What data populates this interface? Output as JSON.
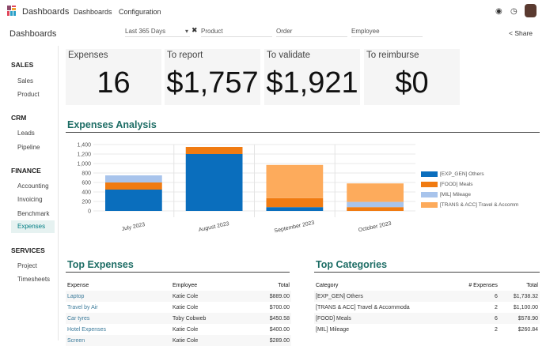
{
  "topbar": {
    "app_name": "Dashboards",
    "menu": [
      "Dashboards",
      "Configuration"
    ],
    "icons": [
      "chat-icon",
      "clock-icon",
      "avatar"
    ]
  },
  "control": {
    "breadcrumb": "Dashboards",
    "date_filter": "Last 365 Days",
    "filters": [
      "Product",
      "Order",
      "Employee"
    ],
    "share": "Share"
  },
  "sidebar": [
    {
      "header": "SALES",
      "items": [
        "Sales",
        "Product"
      ]
    },
    {
      "header": "CRM",
      "items": [
        "Leads",
        "Pipeline"
      ]
    },
    {
      "header": "FINANCE",
      "items": [
        "Accounting",
        "Invoicing",
        "Benchmark",
        "Expenses"
      ]
    },
    {
      "header": "SERVICES",
      "items": [
        "Project",
        "Timesheets"
      ]
    }
  ],
  "active_item": "Expenses",
  "kpis": [
    {
      "label": "Expenses",
      "value": "16"
    },
    {
      "label": "To report",
      "value": "$1,757"
    },
    {
      "label": "To validate",
      "value": "$1,921"
    },
    {
      "label": "To reimburse",
      "value": "$0"
    }
  ],
  "analysis_title": "Expenses Analysis",
  "chart_data": {
    "type": "bar",
    "stacked": true,
    "categories": [
      "July 2023",
      "August 2023",
      "September 2023",
      "October 2023"
    ],
    "series": [
      {
        "name": "[EXP_GEN] Others",
        "color": "#0a6ebd",
        "values": [
          450,
          1200,
          80,
          0
        ]
      },
      {
        "name": "[FOOD] Meals",
        "color": "#f07b12",
        "values": [
          150,
          150,
          190,
          80
        ]
      },
      {
        "name": "[MIL] Mileage",
        "color": "#a8c4ec",
        "values": [
          150,
          0,
          0,
          110
        ]
      },
      {
        "name": "[TRANS & ACC] Travel & Accomm",
        "color": "#fdab5c",
        "values": [
          0,
          0,
          700,
          390
        ]
      }
    ],
    "ylim": [
      0,
      1400
    ],
    "yticks": [
      "0",
      "200",
      "400",
      "600",
      "800",
      "1,000",
      "1,200",
      "1,400"
    ],
    "grid": true,
    "legend": "right"
  },
  "top_expenses": {
    "title": "Top Expenses",
    "headers": [
      "Expense",
      "Employee",
      "Total"
    ],
    "rows": [
      [
        "Laptop",
        "Katie Cole",
        "$889.00"
      ],
      [
        "Travel by Air",
        "Katie Cole",
        "$700.00"
      ],
      [
        "Car tyres",
        "Toby Cobweb",
        "$450.58"
      ],
      [
        "Hotel Expenses",
        "Katie Cole",
        "$400.00"
      ],
      [
        "Screen",
        "Katie Cole",
        "$289.00"
      ]
    ]
  },
  "top_categories": {
    "title": "Top Categories",
    "headers": [
      "Category",
      "# Expenses",
      "Total"
    ],
    "rows": [
      [
        "[EXP_GEN] Others",
        "6",
        "$1,738.32"
      ],
      [
        "[TRANS & ACC] Travel & Accommoda",
        "2",
        "$1,100.00"
      ],
      [
        "[FOOD] Meals",
        "6",
        "$578.90"
      ],
      [
        "[MIL] Mileage",
        "2",
        "$260.84"
      ]
    ]
  }
}
